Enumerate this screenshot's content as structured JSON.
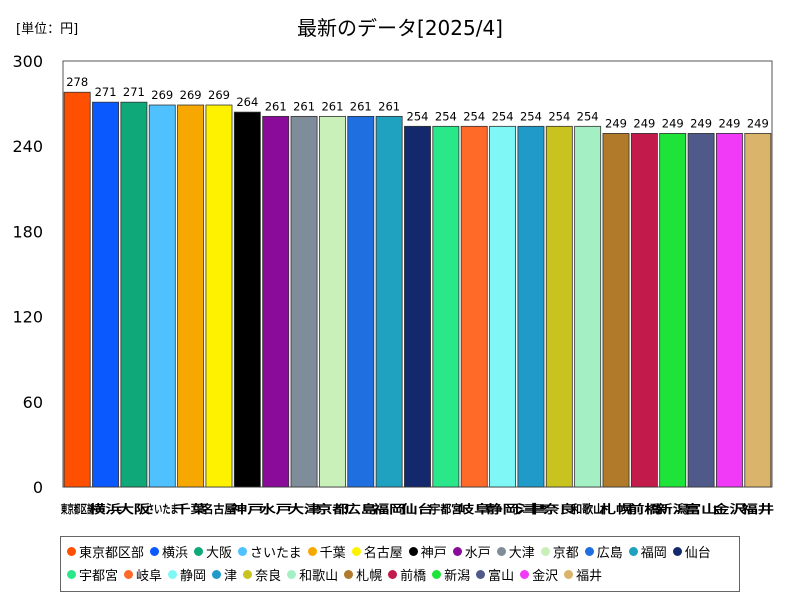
{
  "chart_data": {
    "type": "bar",
    "title": "最新のデータ[2025/4]",
    "unit_label": "[単位：円]",
    "ylim": [
      0,
      300
    ],
    "yticks": [
      0,
      60,
      120,
      180,
      240,
      300
    ],
    "grid": false,
    "legend_position": "bottom",
    "categories": [
      "東京都区部",
      "横浜",
      "大阪",
      "さいたま",
      "千葉",
      "名古屋",
      "神戸",
      "水戸",
      "大津",
      "京都",
      "広島",
      "福岡",
      "仙台",
      "宇都宮",
      "岐阜",
      "静岡",
      "津",
      "奈良",
      "和歌山",
      "札幌",
      "前橋",
      "新潟",
      "富山",
      "金沢",
      "福井"
    ],
    "values": [
      278,
      271,
      271,
      269,
      269,
      269,
      264,
      261,
      261,
      261,
      261,
      261,
      254,
      254,
      254,
      254,
      254,
      254,
      254,
      249,
      249,
      249,
      249,
      249,
      249
    ],
    "colors": [
      "#ff4f00",
      "#0a59ff",
      "#0fa878",
      "#4fc1ff",
      "#f7a800",
      "#fff200",
      "#000000",
      "#8a0a9a",
      "#7f8c99",
      "#c8f0b8",
      "#1f6fe0",
      "#1fa2c0",
      "#14286e",
      "#2ae88a",
      "#ff6a28",
      "#7ff7f7",
      "#1f9ac9",
      "#c9c31f",
      "#a4f0c4",
      "#b07a2a",
      "#c21a4a",
      "#1ee43a",
      "#4f5a8a",
      "#f03af7",
      "#d9b46a"
    ]
  }
}
